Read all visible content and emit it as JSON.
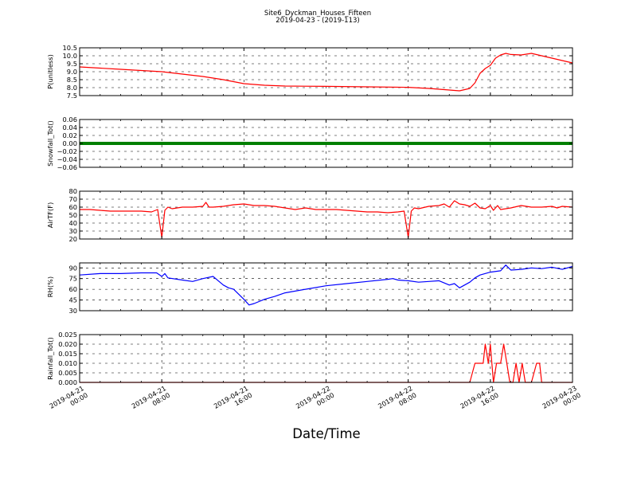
{
  "figure": {
    "title": "Site6_Dyckman_Houses_Fifteen",
    "subtitle": "2019-04-23 - (2019-113)",
    "xlabel": "Date/Time",
    "x_ticks": [
      {
        "l1": "2019-04-21",
        "l2": "00:00"
      },
      {
        "l1": "2019-04-21",
        "l2": "08:00"
      },
      {
        "l1": "2019-04-21",
        "l2": "16:00"
      },
      {
        "l1": "2019-04-22",
        "l2": "00:00"
      },
      {
        "l1": "2019-04-22",
        "l2": "08:00"
      },
      {
        "l1": "2019-04-22",
        "l2": "16:00"
      },
      {
        "l1": "2019-04-23",
        "l2": "00:00"
      }
    ]
  },
  "chart_data": [
    {
      "type": "line",
      "ylabel": "P(unitless)",
      "color": "#ff0000",
      "ylim": [
        7.5,
        10.5
      ],
      "yticks": [
        7.5,
        8.0,
        8.5,
        9.0,
        9.5,
        10.0,
        10.5
      ],
      "ytick_labels": [
        "7.5",
        "8.0",
        "8.5",
        "9.0",
        "9.5",
        "10.0",
        "10.5"
      ],
      "x_hours": [
        0,
        4,
        8,
        12,
        14,
        16,
        18,
        20,
        24,
        28,
        32,
        34,
        36,
        37,
        38,
        38.5,
        39,
        39.5,
        40,
        40.5,
        41,
        41.5,
        42,
        43,
        44,
        45,
        46,
        47,
        48
      ],
      "y": [
        9.3,
        9.15,
        9.0,
        8.7,
        8.5,
        8.25,
        8.15,
        8.1,
        8.08,
        8.05,
        8.02,
        7.95,
        7.85,
        7.8,
        7.95,
        8.3,
        8.9,
        9.2,
        9.4,
        9.85,
        10.05,
        10.15,
        10.08,
        10.05,
        10.15,
        10.0,
        9.85,
        9.7,
        9.55
      ]
    },
    {
      "type": "line",
      "ylabel": "Snowfall_Tot()",
      "color": "#008000",
      "ylim": [
        -0.06,
        0.06
      ],
      "yticks": [
        -0.06,
        -0.04,
        -0.02,
        0.0,
        0.02,
        0.04,
        0.06
      ],
      "ytick_labels": [
        "−0.06",
        "−0.04",
        "−0.02",
        "0.00",
        "0.02",
        "0.04",
        "0.06"
      ],
      "x_hours": [
        0,
        48
      ],
      "y": [
        0.0,
        0.0
      ]
    },
    {
      "type": "line",
      "ylabel": "AirTF(F)",
      "color": "#ff0000",
      "ylim": [
        20,
        80
      ],
      "yticks": [
        20,
        30,
        40,
        50,
        60,
        70,
        80
      ],
      "ytick_labels": [
        "20",
        "30",
        "40",
        "50",
        "60",
        "70",
        "80"
      ],
      "x_hours": [
        0,
        1,
        2,
        3,
        4,
        5,
        6,
        7,
        7.6,
        8,
        8.3,
        8.6,
        9,
        10,
        11,
        12,
        12.3,
        12.6,
        13,
        14,
        15,
        16,
        17,
        18,
        19,
        20,
        21,
        22,
        23,
        24,
        25,
        26,
        27,
        28,
        29,
        30,
        31,
        31.6,
        32,
        32.3,
        32.6,
        33,
        34,
        35,
        35.5,
        36,
        36.5,
        37,
        37.5,
        38,
        38.5,
        39,
        39.5,
        40,
        40.3,
        40.7,
        41,
        42,
        43,
        44,
        45,
        46,
        46.5,
        47,
        48
      ],
      "y": [
        57,
        57,
        56,
        55,
        55,
        55,
        55,
        54,
        57,
        22,
        56,
        60,
        58,
        60,
        60,
        61,
        66,
        60,
        60,
        61,
        63,
        64,
        62,
        62,
        61,
        59,
        57,
        59,
        57,
        57,
        57,
        56,
        55,
        54,
        54,
        53,
        54,
        55,
        22,
        55,
        59,
        58,
        61,
        62,
        64,
        60,
        68,
        64,
        63,
        61,
        65,
        59,
        58,
        62,
        56,
        62,
        57,
        59,
        62,
        60,
        60,
        61,
        59,
        61,
        60
      ]
    },
    {
      "type": "line",
      "ylabel": "RH(%)",
      "color": "#0000ff",
      "ylim": [
        30,
        97
      ],
      "yticks": [
        30,
        45,
        60,
        75,
        90
      ],
      "ytick_labels": [
        "30",
        "45",
        "60",
        "75",
        "90"
      ],
      "x_hours": [
        0,
        2,
        4,
        6,
        7.5,
        8,
        8.3,
        8.6,
        10,
        11,
        12,
        13,
        13.5,
        14,
        14.5,
        15,
        16,
        16.5,
        17,
        18,
        19,
        20,
        22,
        24,
        26,
        28,
        30,
        30.5,
        31,
        32,
        33,
        34,
        35,
        36,
        36.5,
        37,
        38,
        38.5,
        39,
        40,
        41,
        41.5,
        42,
        43,
        44,
        45,
        46,
        47,
        48
      ],
      "y": [
        80,
        82,
        82,
        83,
        83,
        78,
        82,
        76,
        73,
        71,
        75,
        78,
        72,
        66,
        62,
        60,
        46,
        38,
        40,
        46,
        50,
        55,
        60,
        65,
        68,
        71,
        74,
        75,
        73,
        72,
        70,
        71,
        72,
        66,
        68,
        62,
        70,
        76,
        80,
        84,
        86,
        94,
        87,
        88,
        90,
        89,
        91,
        88,
        92
      ]
    },
    {
      "type": "line",
      "ylabel": "Rainfall_Tot()",
      "color": "#ff0000",
      "ylim": [
        0,
        0.025
      ],
      "yticks": [
        0.0,
        0.005,
        0.01,
        0.015,
        0.02,
        0.025
      ],
      "ytick_labels": [
        "0.000",
        "0.005",
        "0.010",
        "0.015",
        "0.020",
        "0.025"
      ],
      "x_hours": [
        0,
        38,
        38.5,
        39,
        39.3,
        39.5,
        39.8,
        40,
        40.3,
        40.6,
        41,
        41.3,
        41.6,
        41.9,
        42.2,
        42.5,
        42.8,
        43.1,
        43.4,
        43.7,
        44,
        44.5,
        44.8,
        45,
        45.5,
        48
      ],
      "y": [
        0.0,
        0.0,
        0.01,
        0.01,
        0.01,
        0.02,
        0.01,
        0.02,
        0.0,
        0.01,
        0.01,
        0.02,
        0.01,
        0.0,
        0.0,
        0.01,
        0.0,
        0.01,
        0.0,
        0.0,
        0.0,
        0.01,
        0.01,
        0.0,
        0.0,
        0.0
      ]
    }
  ]
}
